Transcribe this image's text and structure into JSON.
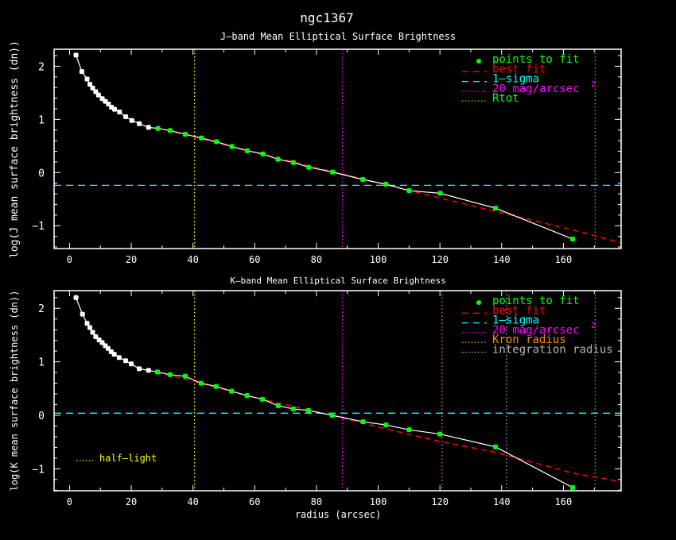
{
  "chart_data": {
    "title": "ngc1367",
    "xlabel": "radius (arcsec)",
    "colors": {
      "data": "#ffffff",
      "fit_points": "#00ff00",
      "best_fit": "#ff0000",
      "sigma": "#00ffff",
      "mag20": "#ff00ff",
      "rtot": "#00ff00",
      "half_light": "#ffff00",
      "kron": "#ff8c00",
      "integration": "#b4b4b4"
    },
    "panels": [
      {
        "type": "line",
        "id": "j",
        "subtitle": "J—band Mean Elliptical Surface Brightness",
        "ylabel": "log(J mean surface brightness (dn))",
        "xlim": [
          -5,
          178.7
        ],
        "ylim": [
          -1.43,
          2.32
        ],
        "xticks": [
          0,
          20,
          40,
          60,
          80,
          100,
          120,
          140,
          160
        ],
        "xtick_labels": [
          "0",
          "20",
          "40",
          "60",
          "80",
          "100",
          "120",
          "140",
          "160"
        ],
        "yticks": [
          2,
          1,
          0,
          -1
        ],
        "ytick_labels": [
          "2",
          "1",
          "0",
          "−1"
        ],
        "profile": [
          [
            2.1,
            2.21
          ],
          [
            4.0,
            1.9
          ],
          [
            5.7,
            1.76
          ],
          [
            6.6,
            1.66
          ],
          [
            7.5,
            1.59
          ],
          [
            8.5,
            1.52
          ],
          [
            9.4,
            1.46
          ],
          [
            10.6,
            1.39
          ],
          [
            11.6,
            1.34
          ],
          [
            12.6,
            1.29
          ],
          [
            13.6,
            1.23
          ],
          [
            14.6,
            1.19
          ],
          [
            16.2,
            1.14
          ],
          [
            18.2,
            1.05
          ],
          [
            20.2,
            0.98
          ],
          [
            22.6,
            0.92
          ],
          [
            25.6,
            0.85
          ],
          [
            28.6,
            0.83
          ],
          [
            32.6,
            0.79
          ],
          [
            37.5,
            0.72
          ],
          [
            42.7,
            0.65
          ],
          [
            47.6,
            0.58
          ],
          [
            52.6,
            0.49
          ],
          [
            57.6,
            0.41
          ],
          [
            62.6,
            0.35
          ],
          [
            67.5,
            0.25
          ],
          [
            72.5,
            0.19
          ],
          [
            77.5,
            0.1
          ],
          [
            85.2,
            0.01
          ],
          [
            95.0,
            -0.13
          ],
          [
            102.5,
            -0.22
          ],
          [
            110.0,
            -0.34
          ],
          [
            120.1,
            -0.39
          ],
          [
            138.0,
            -0.67
          ],
          [
            163.0,
            -1.25
          ]
        ],
        "fit_start_index": 17,
        "best_fit": [
          [
            28,
            0.85
          ],
          [
            60,
            0.38
          ],
          [
            85,
            0.02
          ],
          [
            100,
            -0.19
          ],
          [
            120,
            -0.48
          ],
          [
            138,
            -0.73
          ],
          [
            163,
            -1.08
          ],
          [
            178.7,
            -1.32
          ]
        ],
        "sigma_level": -0.24,
        "vlines": [
          {
            "key": "half_light",
            "r": 40.5
          },
          {
            "key": "mag20",
            "r": 88.4
          },
          {
            "key": "rtot",
            "r": 170.3
          }
        ],
        "legend": [
          {
            "label": "points to fit",
            "key": "fit_points",
            "style": "dot"
          },
          {
            "label": "best fit",
            "key": "best_fit",
            "style": "dash"
          },
          {
            "label": "1—sigma",
            "key": "sigma",
            "style": "dash"
          },
          {
            "label": "20 mag/arcsec",
            "key": "mag20",
            "style": "dot-line",
            "sup": "2"
          },
          {
            "label": "Rtot",
            "key": "rtot",
            "style": "dot-line"
          }
        ]
      },
      {
        "type": "line",
        "id": "k",
        "subtitle": "K—band Mean Elliptical Surface Brightness",
        "ylabel": "log(K mean surface brightness (dn))",
        "xlim": [
          -5,
          178.7
        ],
        "ylim": [
          -1.41,
          2.33
        ],
        "xticks": [
          0,
          20,
          40,
          60,
          80,
          100,
          120,
          140,
          160
        ],
        "xtick_labels": [
          "0",
          "20",
          "40",
          "60",
          "80",
          "100",
          "120",
          "140",
          "160"
        ],
        "yticks": [
          2,
          1,
          0,
          -1
        ],
        "ytick_labels": [
          "2",
          "1",
          "0",
          "−1"
        ],
        "profile": [
          [
            2.1,
            2.2
          ],
          [
            4.2,
            1.89
          ],
          [
            5.7,
            1.72
          ],
          [
            6.6,
            1.64
          ],
          [
            7.5,
            1.55
          ],
          [
            8.5,
            1.47
          ],
          [
            9.6,
            1.41
          ],
          [
            10.6,
            1.36
          ],
          [
            11.6,
            1.3
          ],
          [
            12.5,
            1.25
          ],
          [
            13.5,
            1.19
          ],
          [
            14.5,
            1.14
          ],
          [
            16.1,
            1.08
          ],
          [
            18.2,
            1.02
          ],
          [
            20.0,
            0.96
          ],
          [
            22.6,
            0.87
          ],
          [
            25.6,
            0.84
          ],
          [
            28.5,
            0.81
          ],
          [
            32.6,
            0.76
          ],
          [
            37.5,
            0.73
          ],
          [
            42.6,
            0.6
          ],
          [
            47.5,
            0.54
          ],
          [
            52.5,
            0.45
          ],
          [
            57.5,
            0.37
          ],
          [
            62.5,
            0.3
          ],
          [
            67.6,
            0.18
          ],
          [
            72.5,
            0.12
          ],
          [
            77.4,
            0.09
          ],
          [
            85.1,
            0.0
          ],
          [
            95.1,
            -0.12
          ],
          [
            102.5,
            -0.18
          ],
          [
            110.0,
            -0.27
          ],
          [
            120.0,
            -0.35
          ],
          [
            138.0,
            -0.59
          ],
          [
            163.0,
            -1.35
          ]
        ],
        "fit_start_index": 17,
        "best_fit": [
          [
            28,
            0.8
          ],
          [
            40,
            0.64
          ],
          [
            60,
            0.33
          ],
          [
            85,
            0.0
          ],
          [
            100,
            -0.22
          ],
          [
            120,
            -0.49
          ],
          [
            138,
            -0.69
          ],
          [
            163,
            -1.08
          ],
          [
            178.7,
            -1.24
          ]
        ],
        "sigma_level": 0.04,
        "vlines": [
          {
            "key": "half_light",
            "r": 40.5
          },
          {
            "key": "mag20",
            "r": 88.4
          },
          {
            "key": "kron",
            "r": 120.7
          },
          {
            "key": "integration",
            "r": 141.6
          },
          {
            "key": "rtot",
            "r": 170.3
          }
        ],
        "legend": [
          {
            "label": "points to fit",
            "key": "fit_points",
            "style": "dot"
          },
          {
            "label": "best fit",
            "key": "best_fit",
            "style": "dash"
          },
          {
            "label": "1—sigma",
            "key": "sigma",
            "style": "dash"
          },
          {
            "label": "20 mag/arcsec",
            "key": "mag20",
            "style": "dot-line",
            "sup": "2"
          },
          {
            "label": "Kron radius",
            "key": "kron",
            "style": "dot-line"
          },
          {
            "label": "integration radius",
            "key": "integration",
            "style": "dot-line"
          }
        ],
        "annotation": {
          "label": "half—light",
          "key": "half_light"
        }
      }
    ]
  }
}
